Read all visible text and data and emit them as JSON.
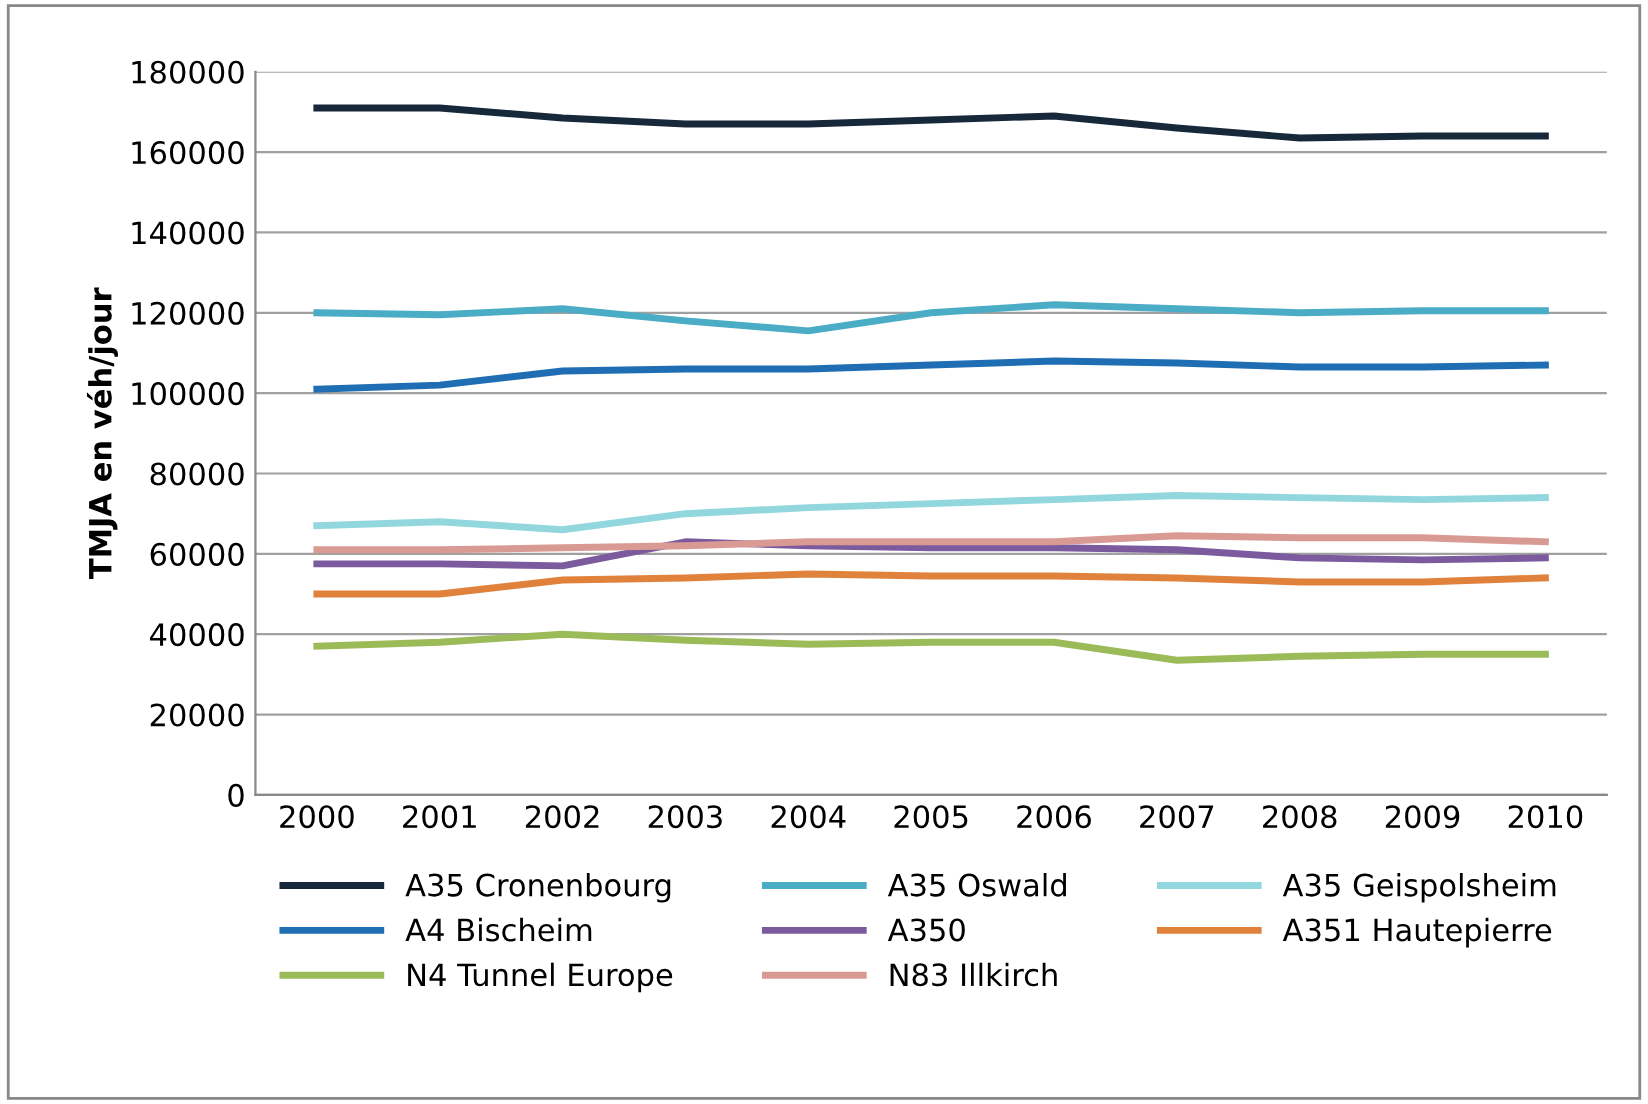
{
  "chart_data": {
    "type": "line",
    "ylabel": "TMJA en véh/jour",
    "categories": [
      "2000",
      "2001",
      "2002",
      "2003",
      "2004",
      "2005",
      "2006",
      "2007",
      "2008",
      "2009",
      "2010"
    ],
    "ylim": [
      0,
      180000
    ],
    "yticks": [
      0,
      20000,
      40000,
      60000,
      80000,
      100000,
      120000,
      140000,
      160000,
      180000
    ],
    "grid": "y",
    "legend": "bottom",
    "marker": "none",
    "line_style": "solid",
    "series": [
      {
        "name": "A35 Cronenbourg",
        "color": "#17283b",
        "values": [
          171000,
          171000,
          168500,
          167000,
          167000,
          168000,
          169000,
          166000,
          163500,
          164000,
          164000
        ]
      },
      {
        "name": "A35 Oswald",
        "color": "#4bacc6",
        "values": [
          120000,
          119500,
          121000,
          118000,
          115500,
          120000,
          122000,
          121000,
          120000,
          120500,
          120500
        ]
      },
      {
        "name": "A35 Geispolsheim",
        "color": "#93d7de",
        "values": [
          67000,
          68000,
          66000,
          70000,
          71500,
          72500,
          73500,
          74500,
          74000,
          73500,
          74000
        ]
      },
      {
        "name": "A4 Bischeim",
        "color": "#1f6eb3",
        "values": [
          101000,
          102000,
          105500,
          106000,
          106000,
          107000,
          108000,
          107500,
          106500,
          106500,
          107000
        ]
      },
      {
        "name": "A350",
        "color": "#7b5b9e",
        "values": [
          57500,
          57500,
          57000,
          63000,
          62000,
          61500,
          61500,
          61000,
          59000,
          58500,
          59000
        ]
      },
      {
        "name": "A351 Hautepierre",
        "color": "#e0823c",
        "values": [
          50000,
          50000,
          53500,
          54000,
          55000,
          54500,
          54500,
          54000,
          53000,
          53000,
          54000
        ]
      },
      {
        "name": "N4 Tunnel Europe",
        "color": "#9bbb59",
        "values": [
          37000,
          38000,
          40000,
          38500,
          37500,
          38000,
          38000,
          33500,
          34500,
          35000,
          35000
        ]
      },
      {
        "name": "N83 Illkirch",
        "color": "#d99a94",
        "values": [
          61000,
          61000,
          61500,
          62000,
          63000,
          63000,
          63000,
          64500,
          64000,
          64000,
          63000
        ]
      }
    ]
  }
}
